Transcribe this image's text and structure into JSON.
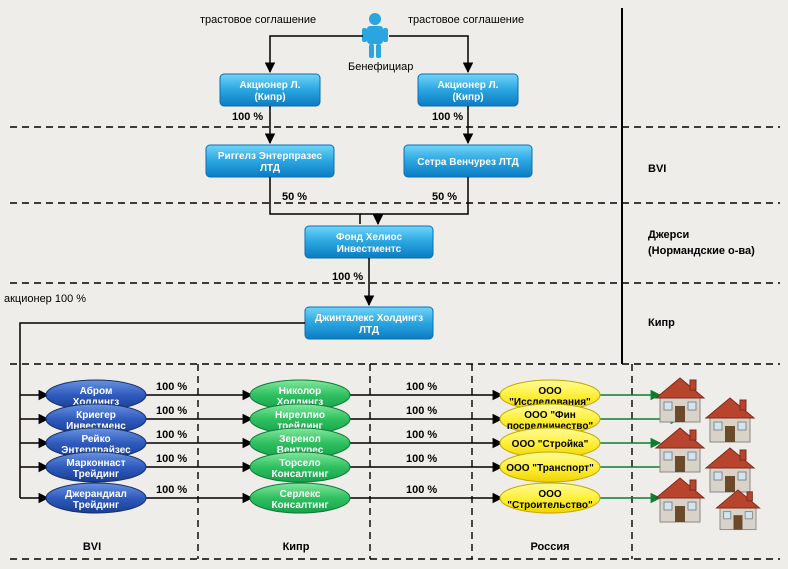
{
  "colors": {
    "bg": "#efedea",
    "cyan1": "#5ec7f3",
    "cyan2": "#0a7cc2",
    "blue1": "#5d85d5",
    "blue2": "#1a3d90",
    "green1": "#6fdc8c",
    "green2": "#16a249",
    "yellow1": "#fff66b",
    "yellow2": "#e3c800",
    "line": "#000",
    "gline": "#0a7f2f"
  },
  "labels": {
    "trust_l": "трастовое соглашение",
    "trust_r": "трастовое соглашение",
    "benef": "Бенефициар",
    "akc100": "акционер 100 %",
    "j1": "BVI",
    "j2": "Джерси",
    "j2b": "(Нормандские о-ва)",
    "j3": "Кипр",
    "bvi": "BVI",
    "cyprus": "Кипр",
    "russia": "Россия"
  },
  "pct": {
    "p100": "100 %",
    "p50l": "50 %",
    "p50r": "50 %",
    "p100b": "100 %"
  },
  "boxes": {
    "shL": {
      "l1": "Акционер Л.",
      "l2": "(Кипр)"
    },
    "shR": {
      "l1": "Акционер Л.",
      "l2": "(Кипр)"
    },
    "rig": {
      "l1": "Риггелз Энтерпразес",
      "l2": "ЛТД"
    },
    "set": {
      "l1": "Сетра Венчурез ЛТД"
    },
    "hel": {
      "l1": "Фонд Хелиос",
      "l2": "Инвестментс"
    },
    "gin": {
      "l1": "Джинталекс Холдингз",
      "l2": "ЛТД"
    }
  },
  "ell": {
    "b": [
      "Абром Холдингз",
      "Криегер Инвестменс",
      "Рейко Энтерпрайзес",
      "Марконнаст Трейдинг",
      "Джерандиал Трейдинг"
    ],
    "g": [
      "Николор Холдингз",
      "Ниреллио трейдинг",
      "Зеренол Вентурес",
      "Торсело Консалтинг",
      "Серлекс Консалтинг"
    ],
    "y": [
      [
        "ООО",
        "\"Исследования\""
      ],
      [
        "ООО \"Фин",
        "посредничество\""
      ],
      [
        "ООО \"Стройка\""
      ],
      [
        "ООО \"Транспорт\""
      ],
      [
        "ООО",
        "\"Строительство\""
      ]
    ]
  }
}
